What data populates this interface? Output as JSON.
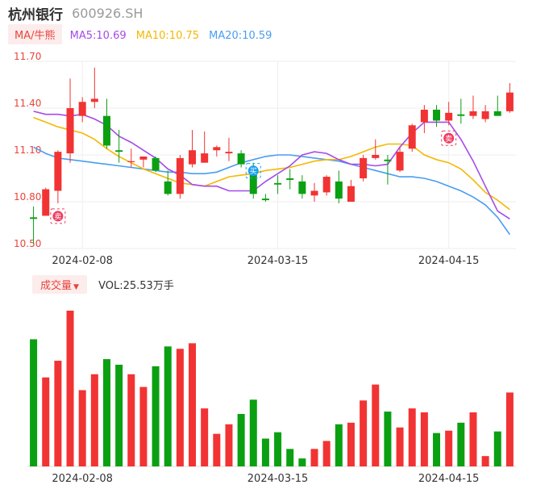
{
  "header": {
    "stock_name": "杭州银行",
    "stock_code": "600926.SH"
  },
  "ma_legend": {
    "main_label": "MA/牛熊",
    "items": [
      {
        "text": "MA5:10.69",
        "color": "#a64ae8"
      },
      {
        "text": "MA10:10.75",
        "color": "#f5b800"
      },
      {
        "text": "MA20:10.59",
        "color": "#4a9df0"
      }
    ]
  },
  "volume_legend": {
    "main_label": "成交量",
    "value_text": "VOL:25.53万手"
  },
  "colors": {
    "up": "#f23333",
    "down": "#0aa012",
    "ma5": "#a64ae8",
    "ma10": "#f5b800",
    "ma20": "#4a9df0",
    "axis_label": "#e8453c",
    "grid": "#eeeeee"
  },
  "chart_data": {
    "type": "candlestick",
    "price_axis": {
      "ticks": [
        "11.70",
        "11.40",
        "11.10",
        "10.80",
        "10.50"
      ],
      "values": [
        11.7,
        11.4,
        11.1,
        10.8,
        10.5
      ],
      "ylim": [
        10.5,
        11.7
      ]
    },
    "x_tick_labels": [
      {
        "label": "2024-02-08",
        "index": 4
      },
      {
        "label": "2024-03-15",
        "index": 20
      },
      {
        "label": "2024-04-15",
        "index": 34
      }
    ],
    "candles": [
      {
        "o": 10.7,
        "h": 10.77,
        "l": 10.53,
        "c": 10.69
      },
      {
        "o": 10.71,
        "h": 10.89,
        "l": 10.71,
        "c": 10.88
      },
      {
        "o": 10.87,
        "h": 11.13,
        "l": 10.79,
        "c": 11.12
      },
      {
        "o": 11.11,
        "h": 11.59,
        "l": 11.05,
        "c": 11.4
      },
      {
        "o": 11.35,
        "h": 11.47,
        "l": 11.31,
        "c": 11.44
      },
      {
        "o": 11.44,
        "h": 11.66,
        "l": 11.4,
        "c": 11.46
      },
      {
        "o": 11.35,
        "h": 11.46,
        "l": 11.14,
        "c": 11.16
      },
      {
        "o": 11.13,
        "h": 11.26,
        "l": 11.05,
        "c": 11.12
      },
      {
        "o": 11.06,
        "h": 11.14,
        "l": 11.02,
        "c": 11.06
      },
      {
        "o": 11.07,
        "h": 11.09,
        "l": 11.02,
        "c": 11.09
      },
      {
        "o": 11.08,
        "h": 11.09,
        "l": 10.99,
        "c": 11.0
      },
      {
        "o": 10.93,
        "h": 11.0,
        "l": 10.84,
        "c": 10.85
      },
      {
        "o": 10.85,
        "h": 11.1,
        "l": 10.82,
        "c": 11.08
      },
      {
        "o": 11.04,
        "h": 11.26,
        "l": 11.02,
        "c": 11.13
      },
      {
        "o": 11.05,
        "h": 11.25,
        "l": 11.05,
        "c": 11.11
      },
      {
        "o": 11.13,
        "h": 11.16,
        "l": 11.09,
        "c": 11.15
      },
      {
        "o": 11.11,
        "h": 11.21,
        "l": 11.06,
        "c": 11.12
      },
      {
        "o": 11.11,
        "h": 11.13,
        "l": 11.02,
        "c": 11.04
      },
      {
        "o": 11.01,
        "h": 11.05,
        "l": 10.82,
        "c": 10.85
      },
      {
        "o": 10.82,
        "h": 10.85,
        "l": 10.8,
        "c": 10.81
      },
      {
        "o": 10.92,
        "h": 10.97,
        "l": 10.85,
        "c": 10.91
      },
      {
        "o": 10.95,
        "h": 11.01,
        "l": 10.88,
        "c": 10.94
      },
      {
        "o": 10.93,
        "h": 10.97,
        "l": 10.82,
        "c": 10.85
      },
      {
        "o": 10.84,
        "h": 10.92,
        "l": 10.8,
        "c": 10.87
      },
      {
        "o": 10.86,
        "h": 10.97,
        "l": 10.84,
        "c": 10.96
      },
      {
        "o": 10.93,
        "h": 11.0,
        "l": 10.79,
        "c": 10.82
      },
      {
        "o": 10.8,
        "h": 10.94,
        "l": 10.8,
        "c": 10.9
      },
      {
        "o": 10.95,
        "h": 11.1,
        "l": 10.93,
        "c": 11.08
      },
      {
        "o": 11.08,
        "h": 11.2,
        "l": 11.07,
        "c": 11.1
      },
      {
        "o": 11.07,
        "h": 11.1,
        "l": 10.91,
        "c": 11.06
      },
      {
        "o": 11.0,
        "h": 11.15,
        "l": 10.99,
        "c": 11.12
      },
      {
        "o": 11.14,
        "h": 11.3,
        "l": 11.12,
        "c": 11.29
      },
      {
        "o": 11.31,
        "h": 11.42,
        "l": 11.24,
        "c": 11.39
      },
      {
        "o": 11.39,
        "h": 11.42,
        "l": 11.28,
        "c": 11.32
      },
      {
        "o": 11.32,
        "h": 11.44,
        "l": 11.29,
        "c": 11.37
      },
      {
        "o": 11.36,
        "h": 11.46,
        "l": 11.3,
        "c": 11.35
      },
      {
        "o": 11.35,
        "h": 11.48,
        "l": 11.33,
        "c": 11.38
      },
      {
        "o": 11.33,
        "h": 11.42,
        "l": 11.31,
        "c": 11.38
      },
      {
        "o": 11.38,
        "h": 11.48,
        "l": 11.35,
        "c": 11.35
      },
      {
        "o": 11.38,
        "h": 11.56,
        "l": 11.37,
        "c": 11.5
      }
    ],
    "ma5": [
      11.38,
      11.36,
      11.36,
      11.35,
      11.36,
      11.33,
      11.29,
      11.22,
      11.18,
      11.13,
      11.08,
      11.01,
      10.97,
      10.91,
      10.9,
      10.9,
      10.87,
      10.87,
      10.87,
      10.93,
      10.98,
      11.03,
      11.1,
      11.12,
      11.11,
      11.07,
      11.04,
      11.04,
      11.03,
      11.04,
      11.15,
      11.24,
      11.31,
      11.31,
      11.31,
      11.2,
      11.06,
      10.9,
      10.74,
      10.69
    ],
    "ma10": [
      11.34,
      11.31,
      11.28,
      11.26,
      11.24,
      11.2,
      11.14,
      11.09,
      11.05,
      11.01,
      10.98,
      10.95,
      10.92,
      10.91,
      10.9,
      10.93,
      10.96,
      10.97,
      10.98,
      11.0,
      11.01,
      11.02,
      11.04,
      11.06,
      11.07,
      11.07,
      11.09,
      11.12,
      11.15,
      11.17,
      11.17,
      11.16,
      11.1,
      11.07,
      11.05,
      11.01,
      10.94,
      10.86,
      10.81,
      10.75
    ],
    "ma20": [
      11.15,
      11.11,
      11.08,
      11.07,
      11.06,
      11.05,
      11.04,
      11.03,
      11.02,
      11.01,
      11.0,
      10.99,
      10.99,
      10.98,
      10.98,
      10.99,
      11.02,
      11.05,
      11.07,
      11.09,
      11.1,
      11.1,
      11.09,
      11.08,
      11.07,
      11.06,
      11.04,
      11.02,
      11.0,
      10.98,
      10.96,
      10.96,
      10.95,
      10.93,
      10.9,
      10.87,
      10.83,
      10.78,
      10.7,
      10.59
    ],
    "volumes": [
      160,
      112,
      133,
      196,
      96,
      116,
      135,
      128,
      116,
      100,
      126,
      151,
      148,
      155,
      73,
      41,
      53,
      66,
      84,
      35,
      43,
      22,
      10,
      22,
      32,
      53,
      55,
      83,
      103,
      69,
      49,
      73,
      68,
      42,
      45,
      55,
      68,
      13,
      44,
      93
    ],
    "volume_ylim": [
      0,
      196
    ],
    "markers": [
      {
        "index": 2,
        "type": "sell",
        "glyph": "卖",
        "at": "low"
      },
      {
        "index": 18,
        "type": "buy",
        "glyph": "买",
        "at": "high"
      },
      {
        "index": 34,
        "type": "sell",
        "glyph": "卖",
        "at": "low"
      }
    ]
  }
}
